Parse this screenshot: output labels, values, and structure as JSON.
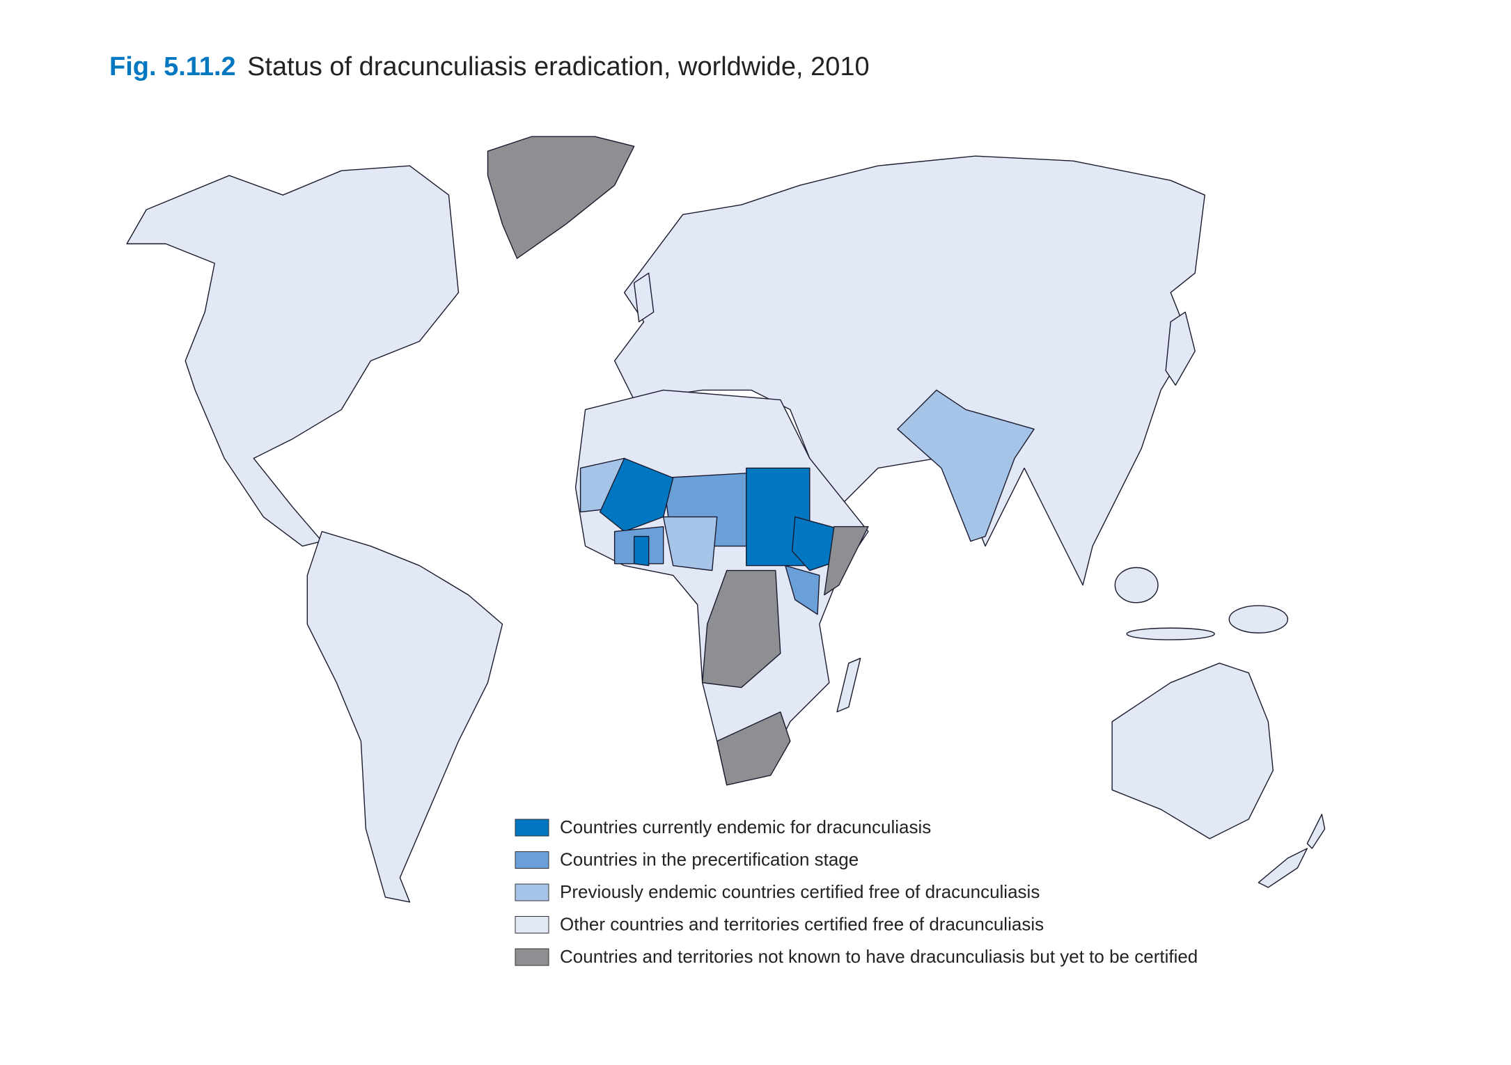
{
  "header": {
    "figure_label": "Fig. 5.11.2",
    "title": "Status of dracunculiasis eradication, worldwide, 2010"
  },
  "legend": {
    "items": [
      {
        "label": "Countries currently endemic for dracunculiasis",
        "color": "#0077c0"
      },
      {
        "label": "Countries in the precertification stage",
        "color": "#6a9fd8"
      },
      {
        "label": "Previously endemic countries certified free of dracunculiasis",
        "color": "#a6c3e8"
      },
      {
        "label": "Other countries and territories certified free of dracunculiasis",
        "color": "#e3e8f6"
      },
      {
        "label": "Countries and territories not known to have dracunculiasis but yet to be certified",
        "color": "#8e8f93"
      }
    ]
  }
}
